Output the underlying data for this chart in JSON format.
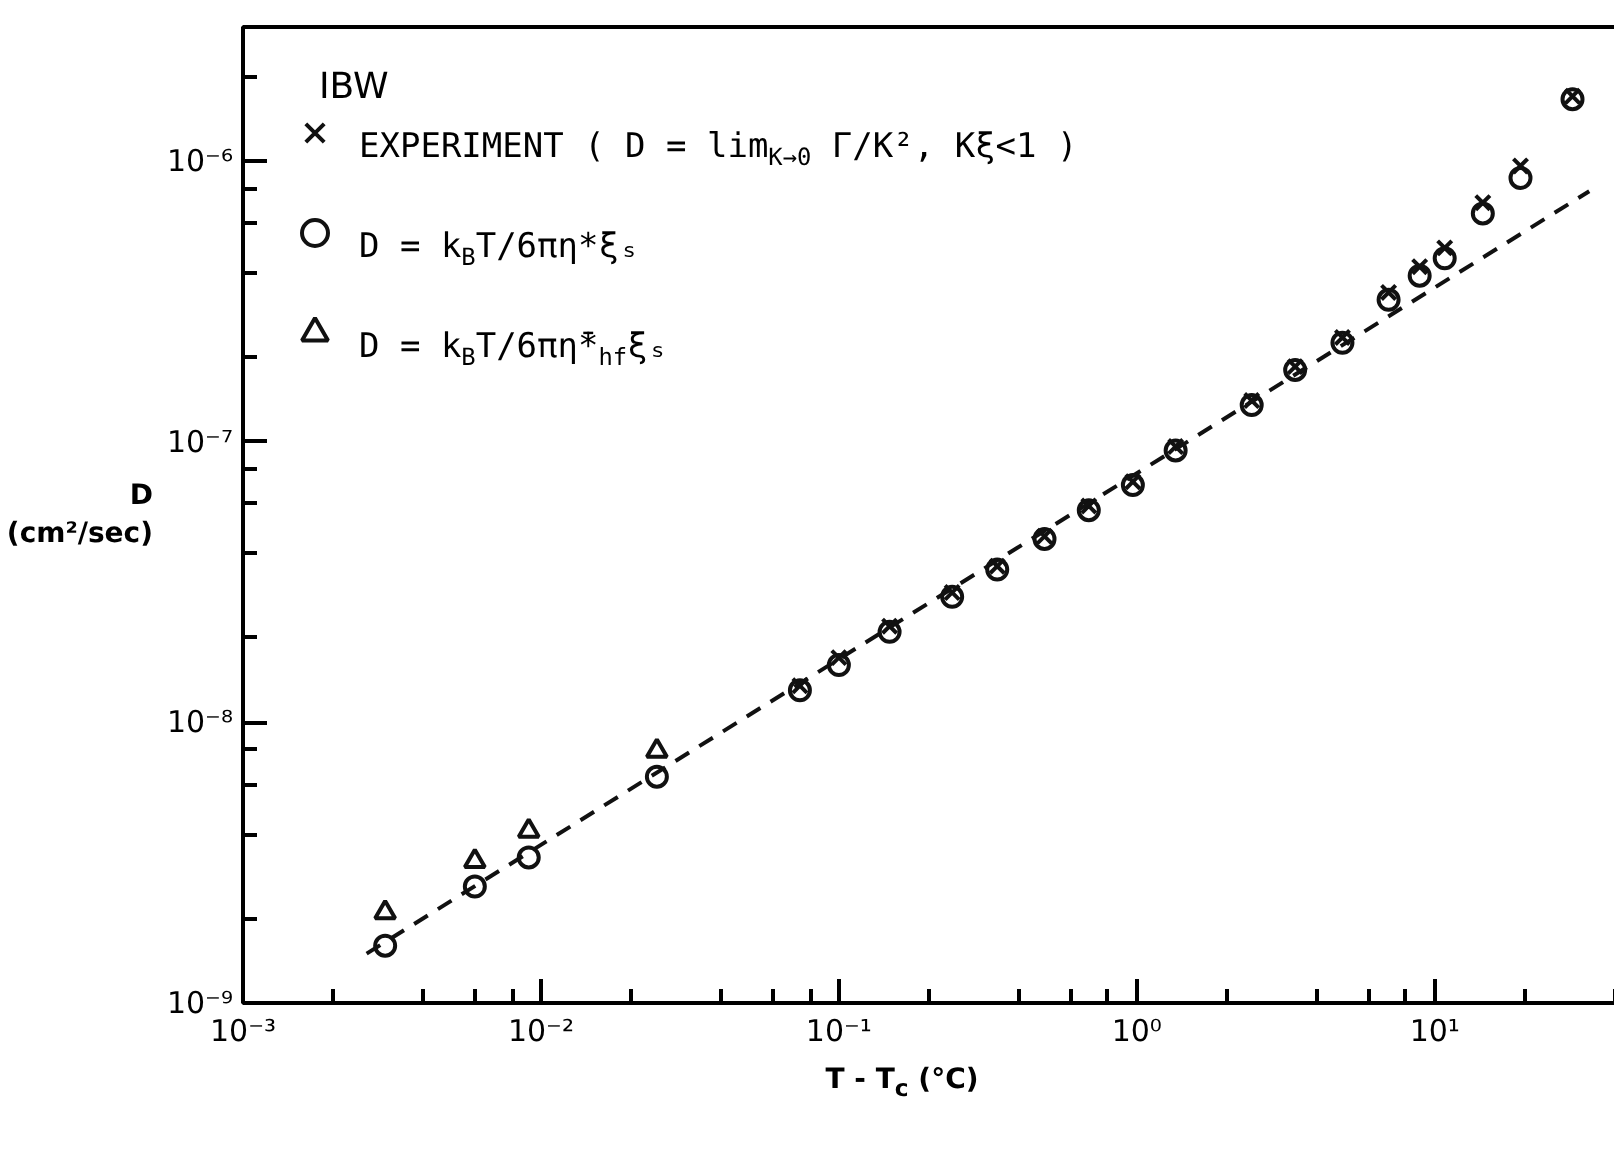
{
  "chart_data": {
    "type": "scatter",
    "xlabel": "T - T$_{c}$ (°C)",
    "ylabel": "D (cm²/sec)",
    "log": "xy",
    "grid": false,
    "legend": "top left",
    "annotations": [
      "IBW"
    ],
    "xlim": [
      0.001,
      50
    ],
    "ylim": [
      1e-09,
      3e-06
    ],
    "xticks": [
      {
        "value": 0.001,
        "label": "10⁻³"
      },
      {
        "value": 0.01,
        "label": "10⁻²"
      },
      {
        "value": 0.1,
        "label": "10⁻¹"
      },
      {
        "value": 1,
        "label": "10⁰"
      },
      {
        "value": 10,
        "label": "10¹"
      }
    ],
    "yticks": [
      {
        "value": 1e-09,
        "label": "10⁻⁹"
      },
      {
        "value": 1e-08,
        "label": "10⁻⁸"
      },
      {
        "value": 1e-07,
        "label": "10⁻⁷"
      },
      {
        "value": 1e-06,
        "label": "10⁻⁶"
      }
    ],
    "series": [
      {
        "name": "EXPERIMENT ( D = lim$_{K→0}$ Γ/K², Kξ<1 )",
        "marker": "cross",
        "color": "#111111",
        "x": [
          0.074,
          0.1,
          0.148,
          0.24,
          0.34,
          0.49,
          0.69,
          0.97,
          1.35,
          2.43,
          3.4,
          4.9,
          7.0,
          8.9,
          10.8,
          14.5,
          19.4,
          29
        ],
        "values": [
          1.35e-08,
          1.7e-08,
          2.2e-08,
          2.9e-08,
          3.6e-08,
          4.6e-08,
          5.9e-08,
          7.2e-08,
          9.6e-08,
          1.4e-07,
          1.85e-07,
          2.35e-07,
          3.4e-07,
          4.2e-07,
          4.9e-07,
          7.1e-07,
          9.6e-07,
          1.7e-06
        ]
      },
      {
        "name": "D = k$_{B}$T/6πη*ξₛ",
        "marker": "circle",
        "color": "#111111",
        "x": [
          0.003,
          0.006,
          0.0091,
          0.0245,
          0.074,
          0.1,
          0.148,
          0.24,
          0.34,
          0.49,
          0.69,
          0.97,
          1.35,
          2.43,
          3.4,
          4.9,
          7.0,
          8.9,
          10.8,
          14.5,
          19.4,
          29
        ],
        "values": [
          1.6e-09,
          2.6e-09,
          3.3e-09,
          6.4e-09,
          1.3e-08,
          1.6e-08,
          2.1e-08,
          2.8e-08,
          3.5e-08,
          4.5e-08,
          5.7e-08,
          7e-08,
          9.3e-08,
          1.35e-07,
          1.8e-07,
          2.25e-07,
          3.2e-07,
          3.9e-07,
          4.5e-07,
          6.5e-07,
          8.7e-07,
          1.66e-06
        ]
      },
      {
        "name": "D = k$_{B}$T/6πη̄*$_{hf}$ξₛ",
        "marker": "triangle",
        "color": "#111111",
        "x": [
          0.003,
          0.006,
          0.0091,
          0.0245
        ],
        "values": [
          2.1e-09,
          3.2e-09,
          4.1e-09,
          7.9e-09
        ]
      },
      {
        "type": "line",
        "line_style": "dashed",
        "color": "#111111",
        "x": [
          0.0026,
          33
        ],
        "values": [
          1.5e-09,
          7.8e-07
        ]
      }
    ]
  }
}
